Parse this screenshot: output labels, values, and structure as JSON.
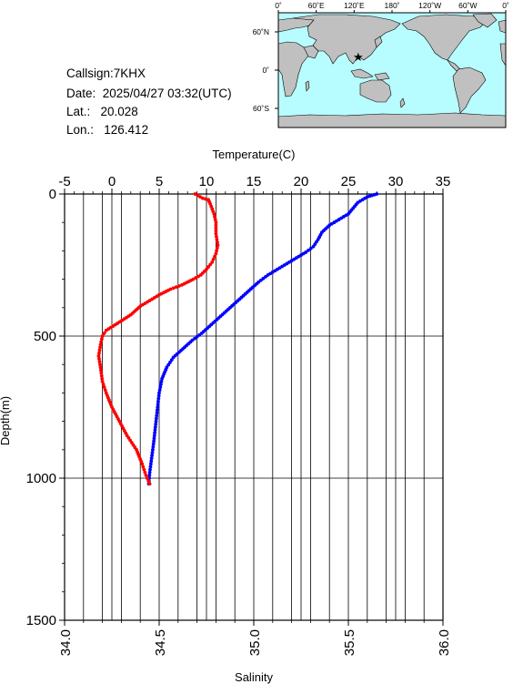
{
  "info": {
    "callsign": "Callsign:7KHX",
    "date": "Date:  2025/04/27 03:32(UTC)",
    "lat": "Lat.:   20.028",
    "lon": "Lon.:   126.412"
  },
  "map": {
    "lon_ticks": [
      "0˚",
      "60˚E",
      "120˚E",
      "180˚",
      "120˚W",
      "60˚W",
      "0˚"
    ],
    "lat_ticks": [
      "60˚N",
      "0˚",
      "60˚S"
    ],
    "station_lon": 126.412,
    "station_lat": 20.028,
    "ocean_color": "#b7fdff",
    "land_color": "#c0c0c0",
    "marker_color": "#ff0000",
    "marker_icon": "star-icon"
  },
  "chart_data": {
    "type": "line",
    "xlabel_top": "Temperature(C)",
    "xlabel_bottom": "Salinity",
    "ylabel": "Depth(m)",
    "temperature_ticks": [
      "-5",
      "0",
      "5",
      "10",
      "15",
      "20",
      "25",
      "30",
      "35"
    ],
    "salinity_ticks": [
      "34.0",
      "34.5",
      "35.0",
      "35.5",
      "36.0"
    ],
    "depth_ticks": [
      "0",
      "500",
      "1000",
      "1500"
    ],
    "temperature_range": [
      -5,
      35
    ],
    "salinity_range": [
      34.0,
      36.0
    ],
    "depth_range": [
      0,
      1500
    ],
    "grid": true,
    "series": [
      {
        "quantity": "temperature",
        "color": "#0000ff",
        "points": [
          [
            28.0,
            0
          ],
          [
            27.5,
            5
          ],
          [
            27.0,
            10
          ],
          [
            26.5,
            20
          ],
          [
            26.0,
            30
          ],
          [
            25.5,
            50
          ],
          [
            25.0,
            70
          ],
          [
            24.0,
            90
          ],
          [
            23.0,
            110
          ],
          [
            22.2,
            135
          ],
          [
            21.8,
            160
          ],
          [
            21.3,
            185
          ],
          [
            20.5,
            205
          ],
          [
            19.5,
            225
          ],
          [
            18.5,
            245
          ],
          [
            17.5,
            265
          ],
          [
            16.5,
            285
          ],
          [
            15.5,
            310
          ],
          [
            14.5,
            340
          ],
          [
            13.5,
            370
          ],
          [
            12.5,
            400
          ],
          [
            11.5,
            430
          ],
          [
            10.5,
            460
          ],
          [
            9.5,
            490
          ],
          [
            8.5,
            515
          ],
          [
            7.5,
            545
          ],
          [
            6.5,
            575
          ],
          [
            5.8,
            610
          ],
          [
            5.3,
            650
          ],
          [
            5.0,
            700
          ],
          [
            4.8,
            760
          ],
          [
            4.6,
            820
          ],
          [
            4.4,
            880
          ],
          [
            4.2,
            930
          ],
          [
            4.0,
            980
          ],
          [
            3.9,
            1020
          ]
        ]
      },
      {
        "quantity": "salinity",
        "color": "#ff0000",
        "points": [
          [
            34.69,
            0
          ],
          [
            34.73,
            15
          ],
          [
            34.76,
            20
          ],
          [
            34.77,
            35
          ],
          [
            34.79,
            70
          ],
          [
            34.8,
            100
          ],
          [
            34.8,
            140
          ],
          [
            34.81,
            180
          ],
          [
            34.8,
            210
          ],
          [
            34.78,
            240
          ],
          [
            34.75,
            265
          ],
          [
            34.72,
            285
          ],
          [
            34.68,
            300
          ],
          [
            34.62,
            320
          ],
          [
            34.56,
            335
          ],
          [
            34.5,
            355
          ],
          [
            34.45,
            375
          ],
          [
            34.4,
            395
          ],
          [
            34.35,
            425
          ],
          [
            34.28,
            455
          ],
          [
            34.22,
            480
          ],
          [
            34.2,
            500
          ],
          [
            34.19,
            530
          ],
          [
            34.18,
            570
          ],
          [
            34.19,
            610
          ],
          [
            34.2,
            660
          ],
          [
            34.22,
            700
          ],
          [
            34.25,
            750
          ],
          [
            34.29,
            800
          ],
          [
            34.33,
            850
          ],
          [
            34.38,
            900
          ],
          [
            34.41,
            950
          ],
          [
            34.43,
            990
          ],
          [
            34.45,
            1020
          ]
        ]
      }
    ]
  }
}
